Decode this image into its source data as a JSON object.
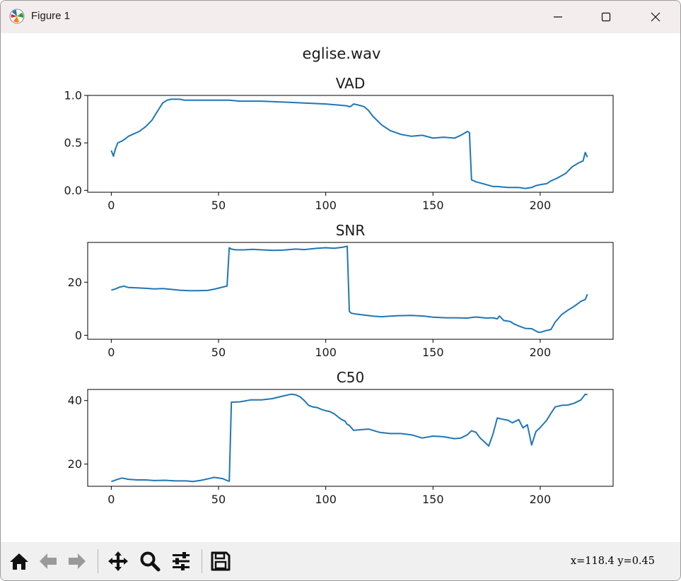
{
  "window": {
    "title": "Figure 1",
    "controls": {
      "minimize": "minimize",
      "maximize": "maximize",
      "close": "close"
    }
  },
  "figure": {
    "suptitle": "eglise.wav",
    "line_color": "#1f77b4"
  },
  "chart_data": [
    {
      "type": "line",
      "title": "VAD",
      "xlabel": "",
      "ylabel": "",
      "xlim": [
        -11,
        234
      ],
      "ylim": [
        -0.02,
        1.0
      ],
      "xticks": [
        0,
        50,
        100,
        150,
        200
      ],
      "xtick_labels": [
        "0",
        "50",
        "100",
        "150",
        "200"
      ],
      "yticks": [
        0.0,
        0.5,
        1.0
      ],
      "ytick_labels": [
        "0.0",
        "0.5",
        "1.0"
      ],
      "x": [
        0,
        1,
        2,
        3,
        5,
        7,
        8,
        10,
        13,
        16,
        19,
        22,
        24,
        26,
        28,
        30,
        32,
        34,
        40,
        50,
        55,
        60,
        70,
        80,
        90,
        100,
        105,
        110,
        111,
        112,
        113,
        115,
        118,
        120,
        122,
        126,
        130,
        135,
        140,
        145,
        150,
        155,
        160,
        163,
        166,
        167,
        168,
        170,
        175,
        178,
        180,
        185,
        190,
        193,
        196,
        198,
        200,
        203,
        205,
        208,
        212,
        215,
        218,
        220,
        221,
        222
      ],
      "values": [
        0.42,
        0.36,
        0.44,
        0.5,
        0.52,
        0.55,
        0.57,
        0.59,
        0.62,
        0.67,
        0.74,
        0.85,
        0.92,
        0.95,
        0.96,
        0.96,
        0.96,
        0.95,
        0.95,
        0.95,
        0.95,
        0.94,
        0.94,
        0.93,
        0.92,
        0.91,
        0.9,
        0.89,
        0.88,
        0.89,
        0.91,
        0.9,
        0.88,
        0.84,
        0.78,
        0.69,
        0.63,
        0.59,
        0.57,
        0.58,
        0.55,
        0.56,
        0.55,
        0.58,
        0.62,
        0.61,
        0.11,
        0.09,
        0.06,
        0.04,
        0.04,
        0.03,
        0.03,
        0.02,
        0.03,
        0.05,
        0.06,
        0.07,
        0.1,
        0.13,
        0.18,
        0.25,
        0.29,
        0.31,
        0.4,
        0.35
      ],
      "series_name": "VAD"
    },
    {
      "type": "line",
      "title": "SNR",
      "xlabel": "",
      "ylabel": "",
      "xlim": [
        -11,
        234
      ],
      "ylim": [
        -1.5,
        35
      ],
      "xticks": [
        0,
        50,
        100,
        150,
        200
      ],
      "xtick_labels": [
        "0",
        "50",
        "100",
        "150",
        "200"
      ],
      "yticks": [
        0,
        20
      ],
      "ytick_labels": [
        "0",
        "20"
      ],
      "x": [
        0,
        2,
        4,
        6,
        8,
        12,
        16,
        20,
        24,
        28,
        32,
        36,
        40,
        45,
        48,
        52,
        54,
        55,
        56,
        58,
        62,
        66,
        70,
        76,
        80,
        86,
        90,
        96,
        100,
        104,
        108,
        110,
        111,
        112,
        114,
        118,
        122,
        126,
        130,
        134,
        140,
        146,
        150,
        156,
        160,
        166,
        170,
        175,
        178,
        180,
        181,
        183,
        186,
        188,
        190,
        193,
        196,
        199,
        200,
        203,
        205,
        207,
        210,
        213,
        216,
        219,
        221,
        222
      ],
      "values": [
        17,
        17.5,
        18.2,
        18.5,
        18,
        17.9,
        17.7,
        17.5,
        17.6,
        17.3,
        17.0,
        16.8,
        16.8,
        16.9,
        17.4,
        18.2,
        18.6,
        33,
        32.5,
        32.2,
        32.2,
        32.4,
        32.2,
        32.0,
        32.1,
        32.5,
        32.3,
        32.8,
        33.0,
        32.8,
        33.2,
        33.6,
        9,
        8.3,
        8.0,
        7.6,
        7.2,
        7.0,
        7.2,
        7.4,
        7.5,
        7.2,
        6.8,
        6.6,
        6.6,
        6.5,
        6.9,
        6.5,
        6.6,
        6.2,
        7.3,
        5.6,
        5.2,
        4.2,
        3.5,
        2.6,
        2.5,
        1.2,
        1.1,
        1.8,
        2.2,
        5.0,
        7.8,
        9.5,
        11.0,
        12.8,
        13.5,
        15.5
      ],
      "series_name": "SNR"
    },
    {
      "type": "line",
      "title": "C50",
      "xlabel": "",
      "ylabel": "",
      "xlim": [
        -11,
        234
      ],
      "ylim": [
        13,
        43.5
      ],
      "xticks": [
        0,
        50,
        100,
        150,
        200
      ],
      "xtick_labels": [
        "0",
        "50",
        "100",
        "150",
        "200"
      ],
      "yticks": [
        20,
        40
      ],
      "ytick_labels": [
        "20",
        "40"
      ],
      "x": [
        0,
        3,
        5,
        8,
        12,
        16,
        20,
        25,
        30,
        35,
        38,
        42,
        46,
        48,
        50,
        52,
        54,
        55,
        56,
        60,
        65,
        70,
        75,
        80,
        84,
        86,
        88,
        90,
        92,
        94,
        96,
        98,
        100,
        102,
        104,
        107,
        109,
        110,
        111,
        113,
        116,
        120,
        125,
        130,
        135,
        140,
        145,
        150,
        155,
        160,
        163,
        166,
        168,
        170,
        172,
        174,
        176,
        178,
        180,
        182,
        185,
        187,
        190,
        192,
        194,
        196,
        198,
        200,
        203,
        205,
        207,
        210,
        213,
        216,
        219,
        221,
        222
      ],
      "values": [
        14.5,
        15.2,
        15.6,
        15.2,
        15,
        15,
        14.8,
        14.9,
        14.7,
        14.7,
        14.5,
        14.9,
        15.5,
        15.8,
        15.6,
        15.4,
        14.8,
        14.6,
        39.5,
        39.6,
        40.2,
        40.2,
        40.6,
        41.4,
        42,
        41.8,
        41.2,
        40,
        38.5,
        38.0,
        37.8,
        37.2,
        36.8,
        36.5,
        35.8,
        34.2,
        33.5,
        32.5,
        32.2,
        30.6,
        30.8,
        31.0,
        30.0,
        29.6,
        29.6,
        29.2,
        28.2,
        28.8,
        28.6,
        28.0,
        28.2,
        29.2,
        30.5,
        30.0,
        28.2,
        27.0,
        25.7,
        29.5,
        34.5,
        34.2,
        33.8,
        33.0,
        34.0,
        31.4,
        32.4,
        26.0,
        30.2,
        31.5,
        33.8,
        36.0,
        38.0,
        38.5,
        38.6,
        39.2,
        40.2,
        42.0,
        41.8
      ],
      "series_name": "C50"
    }
  ],
  "toolbar": {
    "items": [
      {
        "name": "home-icon",
        "label": "Home"
      },
      {
        "name": "back-icon",
        "label": "Back"
      },
      {
        "name": "forward-icon",
        "label": "Forward"
      },
      {
        "name": "pan-icon",
        "label": "Pan"
      },
      {
        "name": "zoom-icon",
        "label": "Zoom"
      },
      {
        "name": "configure-subplots-icon",
        "label": "Subplots"
      },
      {
        "name": "save-icon",
        "label": "Save"
      }
    ],
    "coords": "x=118.4 y=0.45"
  }
}
